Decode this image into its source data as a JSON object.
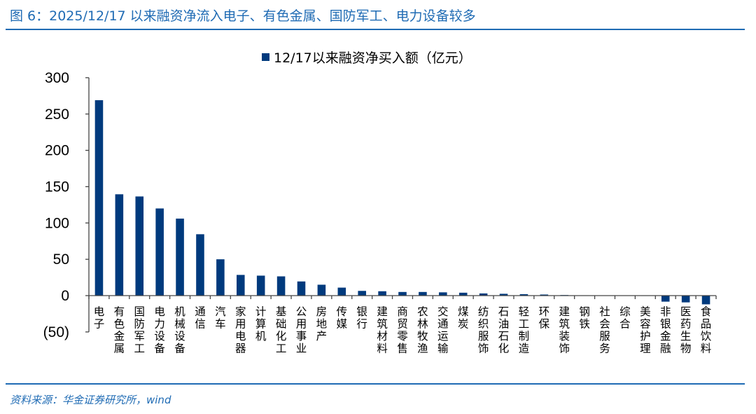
{
  "header": {
    "title": "图 6：2025/12/17 以来融资净流入电子、有色金属、国防军工、电力设备较多"
  },
  "footer": {
    "source": "资料来源：华金证券研究所，wind"
  },
  "chart_data": {
    "type": "bar",
    "title": "",
    "legend": {
      "position": "top-center"
    },
    "series": [
      {
        "name": "12/17以来融资净买入额（亿元）",
        "color": "#003a7d",
        "values": [
          269,
          139.5,
          136.5,
          120,
          106,
          84.5,
          50,
          28.5,
          27.5,
          26.5,
          19.5,
          15,
          11,
          6.5,
          6,
          5,
          5,
          4.5,
          4,
          3,
          2.5,
          2,
          1.5,
          0.8,
          0.5,
          0.3,
          0.2,
          -0.5,
          -8.3,
          -9.3,
          -12
        ]
      }
    ],
    "categories": [
      "电子",
      "有色金属",
      "国防军工",
      "电力设备",
      "机械设备",
      "通信",
      "汽车",
      "家用电器",
      "计算机",
      "基础化工",
      "公用事业",
      "房地产",
      "传媒",
      "银行",
      "建筑材料",
      "商贸零售",
      "农林牧渔",
      "交通运输",
      "煤炭",
      "纺织服饰",
      "石油石化",
      "轻工制造",
      "环保",
      "建筑装饰",
      "钢铁",
      "社会服务",
      "综合",
      "美容护理",
      "非银金融",
      "医药生物",
      "食品饮料"
    ],
    "ylim": [
      -50,
      300
    ],
    "yticks": [
      -50,
      0,
      50,
      100,
      150,
      200,
      250,
      300
    ],
    "ytick_labels": [
      "(50)",
      "0",
      "50",
      "100",
      "150",
      "200",
      "250",
      "300"
    ],
    "xlabel": "",
    "ylabel": "",
    "grid": false
  }
}
